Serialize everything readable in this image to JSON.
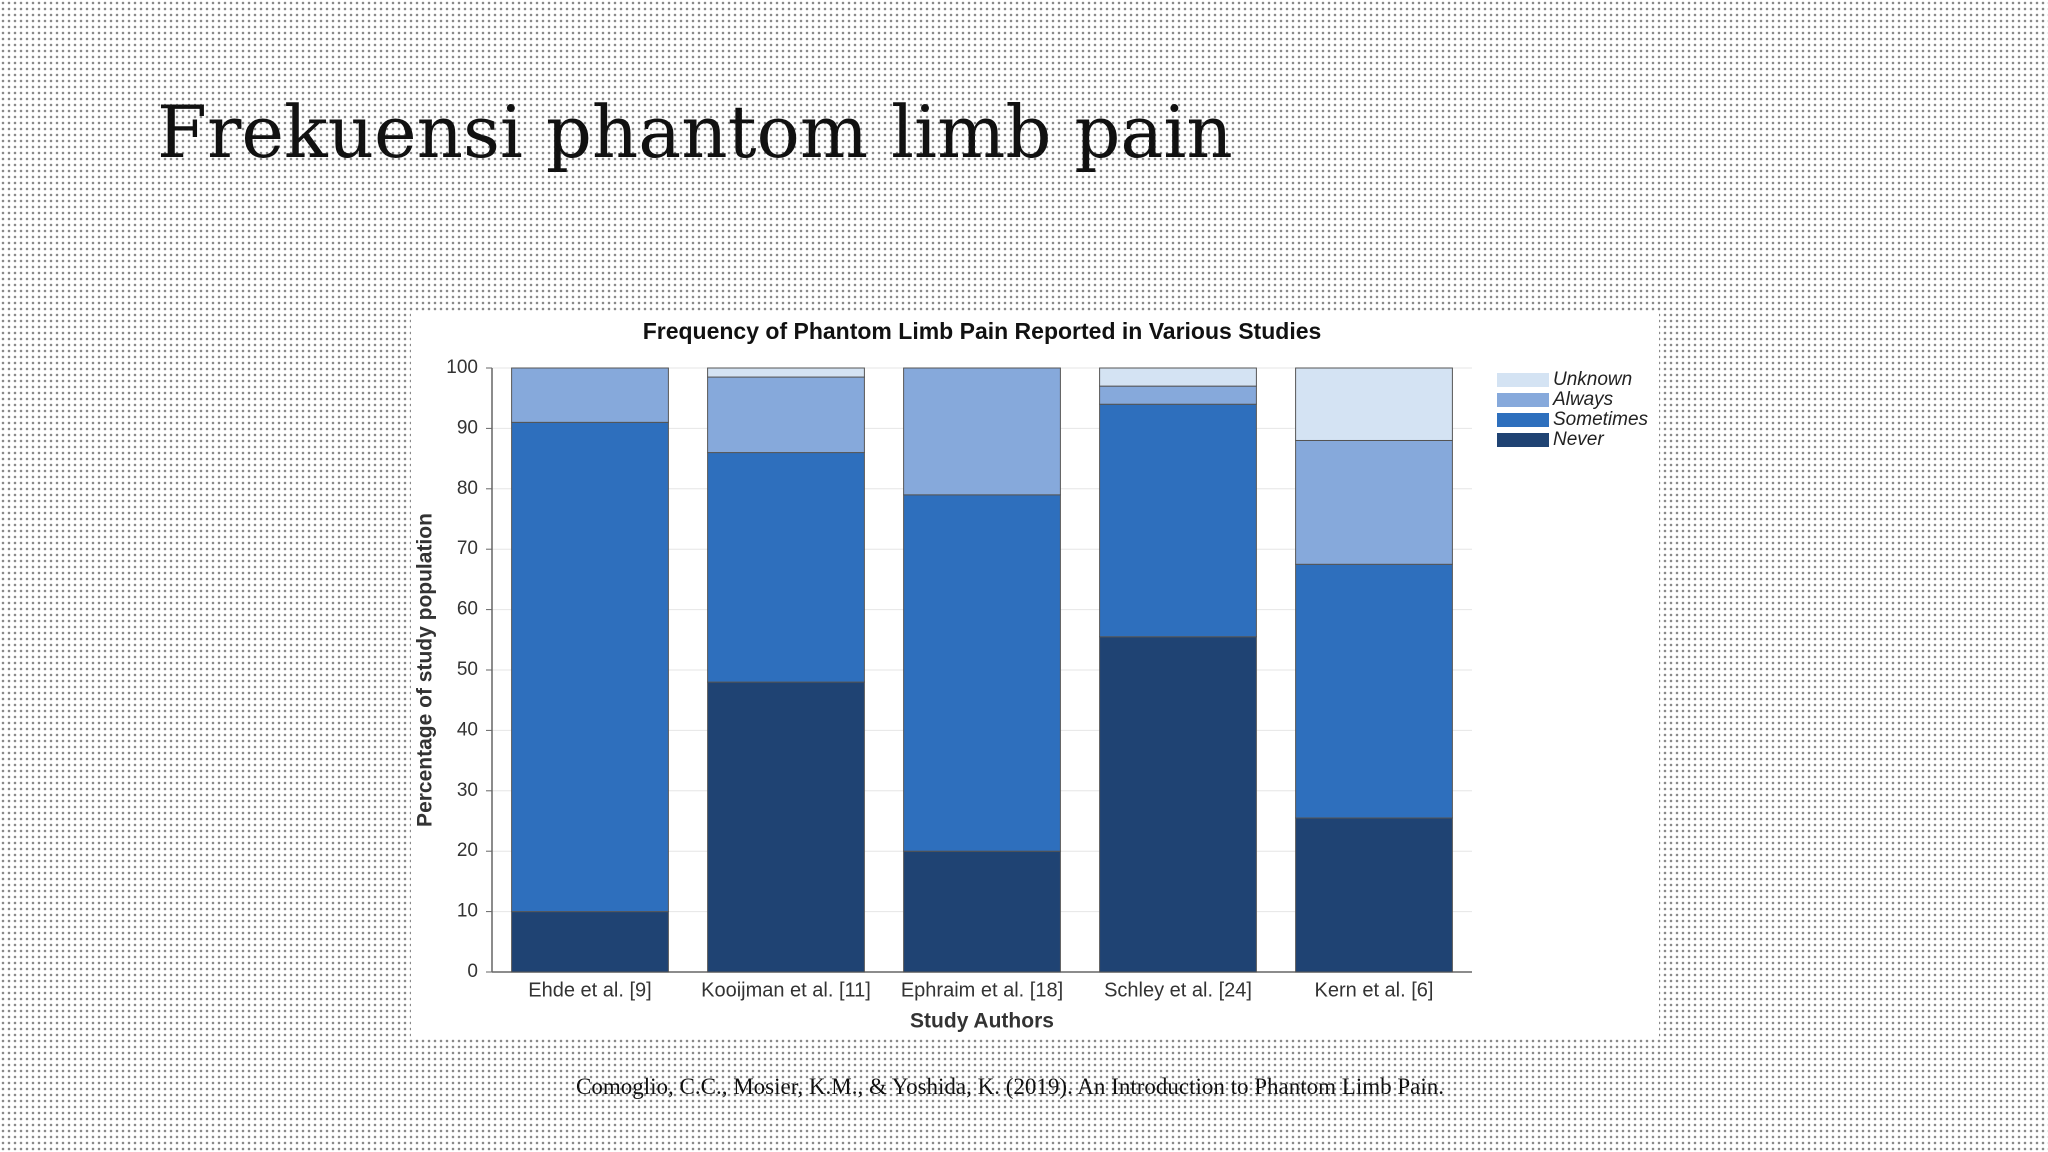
{
  "slide_title": "Frekuensi phantom limb pain",
  "citation": "Comoglio, C.C., Mosier, K.M., & Yoshida, K. (2019). An Introduction to Phantom Limb Pain.",
  "chart_data": {
    "type": "stacked-bar",
    "title": "Frequency of Phantom Limb Pain Reported in Various Studies",
    "x_label": "Study Authors",
    "y_label": "Percentage of study population",
    "categories": [
      "Ehde et al. [9]",
      "Kooijman et al. [11]",
      "Ephraim et al.  [18]",
      "Schley et al. [24]",
      "Kern et al. [6]"
    ],
    "series": [
      {
        "name": "Never",
        "color": "#1f4373",
        "values": [
          10,
          48,
          20,
          55.5,
          25.5
        ]
      },
      {
        "name": "Sometimes",
        "color": "#2e6fbd",
        "values": [
          81,
          38,
          59,
          38.5,
          42
        ]
      },
      {
        "name": "Always",
        "color": "#86a9db",
        "values": [
          9,
          12.5,
          21,
          3,
          20.5
        ]
      },
      {
        "name": "Unknown",
        "color": "#d4e3f3",
        "values": [
          0,
          1.5,
          0,
          3,
          12
        ]
      }
    ],
    "ylim": [
      0,
      100
    ],
    "yticks": [
      0,
      10,
      20,
      30,
      40,
      50,
      60,
      70,
      80,
      90,
      100
    ],
    "grid": true,
    "legend": "top-right"
  }
}
